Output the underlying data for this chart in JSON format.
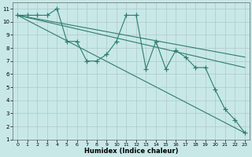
{
  "xlabel": "Humidex (Indice chaleur)",
  "bg_color": "#c8e8e8",
  "grid_color": "#b0c8c8",
  "line_color": "#2e7d6e",
  "xlim": [
    -0.5,
    23.5
  ],
  "ylim": [
    1,
    11.5
  ],
  "xticks": [
    0,
    1,
    2,
    3,
    4,
    5,
    6,
    7,
    8,
    9,
    10,
    11,
    12,
    13,
    14,
    15,
    16,
    17,
    18,
    19,
    20,
    21,
    22,
    23
  ],
  "yticks": [
    1,
    2,
    3,
    4,
    5,
    6,
    7,
    8,
    9,
    10,
    11
  ],
  "zigzag_x": [
    0,
    1,
    2,
    3,
    4,
    5,
    6,
    7,
    8,
    9,
    10,
    11,
    12,
    13,
    14,
    15,
    16,
    17,
    18,
    19,
    20,
    21,
    22,
    23
  ],
  "zigzag_y": [
    10.5,
    10.5,
    10.5,
    10.5,
    11.0,
    8.5,
    8.5,
    7.0,
    7.0,
    7.5,
    8.5,
    10.5,
    10.5,
    6.4,
    8.5,
    6.4,
    7.8,
    7.3,
    6.5,
    6.5,
    4.8,
    3.3,
    2.5,
    1.5
  ],
  "trend1_x": [
    0,
    23
  ],
  "trend1_y": [
    10.5,
    7.3
  ],
  "trend2_x": [
    0,
    23
  ],
  "trend2_y": [
    10.5,
    6.5
  ],
  "trend3_x": [
    0,
    23
  ],
  "trend3_y": [
    10.5,
    1.5
  ]
}
